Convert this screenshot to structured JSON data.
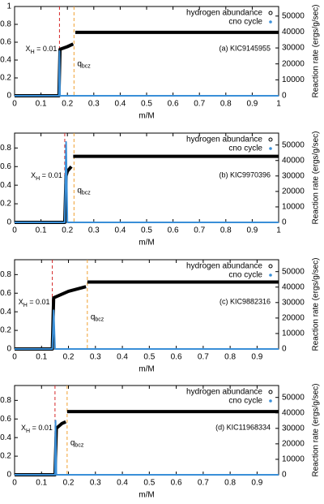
{
  "chart_data": [
    {
      "type": "scatter",
      "xlabel": "m/M",
      "y2label": "Reaction rate (ergs/g/sec)",
      "label": "(a) KIC9145955",
      "xh_label": [
        "X",
        "H",
        " = 0.01"
      ],
      "qbcz_label": [
        "q",
        "bcz"
      ],
      "xh_line": 0.17,
      "qbcz_line": 0.225,
      "xlim": [
        0,
        1
      ],
      "xticks": [
        0,
        0.1,
        0.2,
        0.3,
        0.4,
        0.5,
        0.6,
        0.7,
        0.8,
        0.9,
        1
      ],
      "ylim": [
        0,
        1
      ],
      "yticks": [
        0,
        0.2,
        0.4,
        0.6,
        0.8,
        1
      ],
      "y2lim": [
        0,
        56000
      ],
      "y2ticks": [
        0,
        10000,
        20000,
        30000,
        40000,
        50000
      ],
      "series": [
        {
          "name": "hydrogen abundance",
          "color": "#000000",
          "x": [
            0,
            0.168,
            0.172,
            0.2,
            0.222,
            null,
            0.23,
            1
          ],
          "values": [
            0,
            0,
            0.52,
            0.55,
            0.58,
            null,
            0.71,
            0.71
          ]
        },
        {
          "name": "cno cycle",
          "color": "#3a8fd8",
          "axis": "y2",
          "x": [
            0,
            0.168,
            0.17,
            0.172,
            1
          ],
          "values": [
            0,
            0,
            28000,
            0,
            0
          ]
        }
      ]
    },
    {
      "type": "scatter",
      "xlabel": "m/M",
      "y2label": "Reaction rate (ergs/g/sec)",
      "label": "(b) KIC9970396",
      "xh_label": [
        "X",
        "H",
        " = 0.01"
      ],
      "qbcz_label": [
        "q",
        "bcz"
      ],
      "xh_line": 0.19,
      "qbcz_line": 0.225,
      "xlim": [
        0,
        1
      ],
      "xticks": [
        0,
        0.1,
        0.2,
        0.3,
        0.4,
        0.5,
        0.6,
        0.7,
        0.8,
        0.9,
        1
      ],
      "ylim": [
        0,
        0.96
      ],
      "yticks": [
        0,
        0.2,
        0.4,
        0.6,
        0.8
      ],
      "y2lim": [
        0,
        57700
      ],
      "y2ticks": [
        0,
        10000,
        20000,
        30000,
        40000,
        50000
      ],
      "series": [
        {
          "name": "hydrogen abundance",
          "color": "#000000",
          "x": [
            0,
            0.19,
            0.195,
            0.2,
            0.215,
            null,
            0.222,
            1
          ],
          "values": [
            0,
            0,
            0.5,
            0.55,
            0.6,
            null,
            0.71,
            0.71
          ]
        },
        {
          "name": "cno cycle",
          "color": "#3a8fd8",
          "axis": "y2",
          "x": [
            0,
            0.19,
            0.195,
            0.2,
            1
          ],
          "values": [
            0,
            0,
            52000,
            0,
            0
          ]
        }
      ]
    },
    {
      "type": "scatter",
      "xlabel": "m/M",
      "y2label": "Reaction rate (ergs/g/sec)",
      "label": "(c) KIC9882316",
      "xh_label": [
        "X",
        "H",
        " = 0.01"
      ],
      "qbcz_label": [
        "q",
        "bcz"
      ],
      "xh_line": 0.14,
      "qbcz_line": 0.27,
      "xlim": [
        0,
        0.98
      ],
      "xticks": [
        0,
        0.1,
        0.2,
        0.3,
        0.4,
        0.5,
        0.6,
        0.7,
        0.8,
        0.9
      ],
      "ylim": [
        0,
        0.96
      ],
      "yticks": [
        0,
        0.2,
        0.4,
        0.6,
        0.8
      ],
      "y2lim": [
        0,
        57700
      ],
      "y2ticks": [
        0,
        10000,
        20000,
        30000,
        40000,
        50000
      ],
      "series": [
        {
          "name": "hydrogen abundance",
          "color": "#000000",
          "x": [
            0,
            0.14,
            0.145,
            0.2,
            0.265,
            null,
            0.27,
            0.98
          ],
          "values": [
            0,
            0,
            0.55,
            0.62,
            0.67,
            null,
            0.72,
            0.72
          ]
        },
        {
          "name": "cno cycle",
          "color": "#3a8fd8",
          "axis": "y2",
          "x": [
            0,
            0.14,
            0.145,
            0.15,
            0.98
          ],
          "values": [
            0,
            0,
            25000,
            0,
            0
          ]
        }
      ]
    },
    {
      "type": "scatter",
      "xlabel": "m/M",
      "y2label": "Reaction rate (ergs/g/sec)",
      "label": "(d) KIC11968334",
      "xh_label": [
        "X",
        "H",
        " = 0.01"
      ],
      "qbcz_label": [
        "q",
        "bcz"
      ],
      "xh_line": 0.15,
      "qbcz_line": 0.195,
      "xlim": [
        0,
        0.98
      ],
      "xticks": [
        0,
        0.1,
        0.2,
        0.3,
        0.4,
        0.5,
        0.6,
        0.7,
        0.8,
        0.9
      ],
      "ylim": [
        0,
        0.96
      ],
      "yticks": [
        0,
        0.2,
        0.4,
        0.6,
        0.8
      ],
      "y2lim": [
        0,
        57700
      ],
      "y2ticks": [
        0,
        10000,
        20000,
        30000,
        40000,
        50000
      ],
      "series": [
        {
          "name": "hydrogen abundance",
          "color": "#000000",
          "x": [
            0,
            0.15,
            0.155,
            0.175,
            0.19,
            null,
            0.195,
            0.98
          ],
          "values": [
            0,
            0,
            0.5,
            0.55,
            0.57,
            null,
            0.68,
            0.68
          ]
        },
        {
          "name": "cno cycle",
          "color": "#3a8fd8",
          "axis": "y2",
          "x": [
            0,
            0.15,
            0.152,
            0.155,
            0.98
          ],
          "values": [
            0,
            0,
            35000,
            0,
            0
          ]
        }
      ]
    }
  ]
}
